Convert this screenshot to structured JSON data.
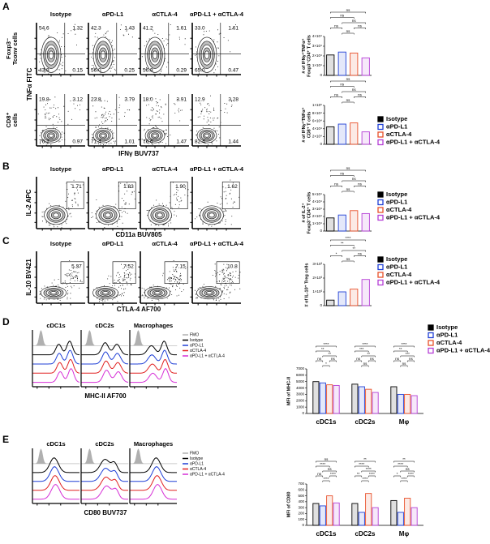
{
  "legend": {
    "names": [
      "Isotype",
      "αPD-L1",
      "αCTLA-4",
      "αPD-L1 + αCTLA-4"
    ],
    "colors": [
      "#000000",
      "#1f3fd6",
      "#e8502a",
      "#b53fd6"
    ]
  },
  "histogram_legend": {
    "names": [
      "FMO",
      "Isotype",
      "αPD-L1",
      "αCTLA-4",
      "αPD-L1 + αCTLA-4"
    ],
    "colors": [
      "#b0b0b0",
      "#000000",
      "#1f3fd6",
      "#e02020",
      "#d62fd6"
    ]
  },
  "panel_a": {
    "letter": "A",
    "columns": [
      "Isotype",
      "αPD-L1",
      "αCTLA-4",
      "αPD-L1 + αCTLA-4"
    ],
    "row_labels": [
      [
        "Foxp3⁻",
        "Tconv cells"
      ],
      [
        "CD8⁺",
        "cells"
      ]
    ],
    "y_label": "TNFα FITC",
    "x_label": "IFNγ BUV737",
    "quadrants": [
      [
        [
          54.6,
          1.32,
          43.9,
          0.15
        ],
        [
          42.3,
          1.43,
          {
            "value": 56,
            "label": "56.0"
          },
          0.25
        ],
        [
          41.2,
          1.61,
          56.9,
          0.29
        ],
        [
          {
            "value": 33,
            "label": "33.0"
          },
          1.61,
          {
            "value": 65,
            "label": "65.0"
          },
          0.47
        ]
      ],
      [
        [
          19.8,
          3.12,
          76.2,
          0.97
        ],
        [
          23.8,
          3.79,
          71.4,
          1.01
        ],
        [
          {
            "value": 18,
            "label": "18.0"
          },
          3.91,
          76.6,
          1.47
        ],
        [
          12.9,
          3.28,
          82.4,
          1.44
        ]
      ]
    ],
    "charts": [
      {
        "type": "bar",
        "y_label": [
          "# of IFNγ⁺TNFα⁺",
          "Foxp3⁻CD4⁺ T cells"
        ],
        "ylim": [
          0,
          40000
        ],
        "yticks": [
          {
            "value": 0,
            "label": "0"
          },
          {
            "value": 10000,
            "label": "1×10⁴"
          },
          {
            "value": 20000,
            "label": "2×10⁴"
          },
          {
            "value": 30000,
            "label": "3×10⁴"
          },
          {
            "value": 40000,
            "label": "4×10⁴"
          }
        ],
        "values": [
          21000,
          24000,
          23000,
          18000
        ],
        "sig": [
          "ns",
          "ns",
          "ns",
          "ns",
          "ns",
          "ns"
        ]
      },
      {
        "type": "bar",
        "y_label": [
          "# of IFNγ⁺TNFα⁺",
          "CD8⁺ T cells"
        ],
        "ylim": [
          0,
          100000
        ],
        "yticks": [
          {
            "value": 0,
            "label": "0"
          },
          {
            "value": 20000,
            "label": "2×10⁴"
          },
          {
            "value": 40000,
            "label": "4×10⁴"
          },
          {
            "value": 60000,
            "label": "6×10⁴"
          },
          {
            "value": 80000,
            "label": "8×10⁴"
          },
          {
            "value": 100000,
            "label": "1×10⁵"
          }
        ],
        "values": [
          45000,
          52000,
          55000,
          32000
        ],
        "sig": [
          "ns",
          "ns",
          "ns",
          "ns",
          "ns",
          "ns"
        ]
      }
    ]
  },
  "panel_b": {
    "letter": "B",
    "columns": [
      "Isotype",
      "αPD-L1",
      "αCTLA-4",
      "αPD-L1 + αCTLA-4"
    ],
    "y_label": "IL-2 APC",
    "x_label": "CD11a BUV805",
    "gates": [
      1.71,
      1.83,
      {
        "value": 1.9,
        "label": "1.90"
      },
      1.62
    ],
    "chart": {
      "type": "bar",
      "y_label": [
        "# of IL-2⁺",
        "Foxp3⁻CD4⁺ T cells"
      ],
      "ylim": [
        0,
        50000
      ],
      "yticks": [
        {
          "value": 0,
          "label": "0"
        },
        {
          "value": 10000,
          "label": "1×10⁴"
        },
        {
          "value": 20000,
          "label": "2×10⁴"
        },
        {
          "value": 30000,
          "label": "3×10⁴"
        },
        {
          "value": 40000,
          "label": "4×10⁴"
        },
        {
          "value": 50000,
          "label": "5×10⁴"
        }
      ],
      "values": [
        18000,
        22000,
        28000,
        24000
      ],
      "sig": [
        "ns",
        "ns",
        "ns",
        "ns",
        "ns",
        "ns"
      ]
    }
  },
  "panel_c": {
    "letter": "C",
    "columns": [
      "Isotype",
      "αPD-L1",
      "αCTLA-4",
      "αPD-L1 + αCTLA-4"
    ],
    "y_label": "IL-10 BV421",
    "x_label": "CTLA-4 AF700",
    "gates": [
      5.37,
      7.52,
      7.15,
      10.8
    ],
    "chart": {
      "type": "bar",
      "y_label": [
        "# of IL-10⁺ Treg cells"
      ],
      "ylim": [
        0,
        3000
      ],
      "yticks": [
        {
          "value": 0,
          "label": "0"
        },
        {
          "value": 1000,
          "label": "1×10³"
        },
        {
          "value": 2000,
          "label": "2×10³"
        },
        {
          "value": 3000,
          "label": "3×10³"
        }
      ],
      "values": [
        400,
        1000,
        1200,
        1900
      ],
      "sig": [
        "****",
        "**",
        "*",
        "**",
        "ns",
        "ns"
      ]
    }
  },
  "panel_d": {
    "letter": "D",
    "histograms": [
      "cDC1s",
      "cDC2s",
      "Macrophages"
    ],
    "x_label": "MHC-II AF700",
    "chart": {
      "type": "grouped_bar",
      "y_label": [
        "MFI of MHC-II"
      ],
      "groups": [
        "cDC1s",
        "cDC2s",
        "Mφ"
      ],
      "ylim": [
        0,
        7000
      ],
      "yticks": [
        0,
        1000,
        2000,
        3000,
        4000,
        5000,
        6000,
        7000
      ],
      "values": [
        [
          5000,
          4800,
          4500,
          4400
        ],
        [
          4600,
          4200,
          3800,
          3300
        ],
        [
          4200,
          3000,
          3000,
          2800
        ]
      ],
      "sig": [
        [
          "****",
          "**",
          "ns",
          "**",
          "*",
          "ns"
        ],
        [
          "****",
          "***",
          "ns",
          "**",
          "ns",
          "ns"
        ],
        [
          "****",
          "**",
          "ns",
          "***",
          "ns",
          "ns"
        ]
      ]
    }
  },
  "panel_e": {
    "letter": "E",
    "histograms": [
      "cDC1s",
      "cDC2s",
      "Macrophages"
    ],
    "x_label": "CD80 BUV737",
    "chart": {
      "type": "grouped_bar",
      "y_label": [
        "MFI of CD80"
      ],
      "groups": [
        "cDC1s",
        "cDC2s",
        "Mφ"
      ],
      "ylim": [
        0,
        700
      ],
      "yticks": [
        0,
        100,
        200,
        300,
        400,
        500,
        600,
        700
      ],
      "values": [
        [
          370,
          330,
          500,
          380
        ],
        [
          370,
          220,
          540,
          300
        ],
        [
          420,
          220,
          460,
          300
        ]
      ],
      "sig": [
        [
          "ns",
          "****",
          "ns",
          "ns",
          "****",
          "****"
        ],
        [
          "**",
          "****",
          "**",
          "****",
          "****",
          "****"
        ],
        [
          "**",
          "****",
          "*",
          "ns",
          "****",
          "****"
        ]
      ]
    }
  }
}
